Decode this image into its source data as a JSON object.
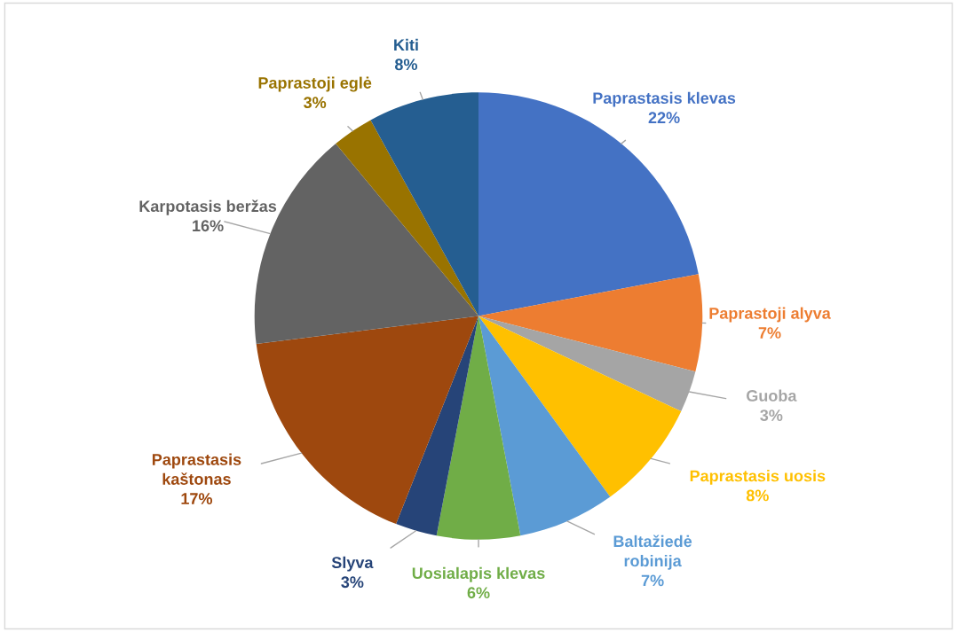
{
  "chart_data": {
    "type": "pie",
    "categories": [
      "Paprastasis klevas",
      "Paprastoji alyva",
      "Guoba",
      "Paprastasis uosis",
      "Baltažiedė\nrobinija",
      "Uosialapis klevas",
      "Slyva",
      "Paprastasis\nkaštonas",
      "Karpotasis beržas",
      "Paprastoji eglė",
      "Kiti"
    ],
    "values": [
      22,
      7,
      3,
      8,
      7,
      6,
      3,
      17,
      16,
      3,
      8
    ],
    "value_labels": [
      "22%",
      "7%",
      "3%",
      "8%",
      "7%",
      "6%",
      "3%",
      "17%",
      "16%",
      "3%",
      "8%"
    ],
    "colors": [
      "#4472c4",
      "#ed7d31",
      "#a5a5a5",
      "#ffc000",
      "#5b9bd5",
      "#70ad47",
      "#264478",
      "#9e480e",
      "#636363",
      "#997300",
      "#255e91"
    ]
  }
}
